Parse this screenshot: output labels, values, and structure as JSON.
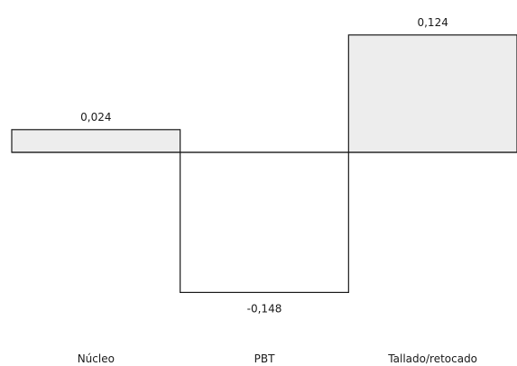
{
  "chart_data": {
    "type": "bar",
    "categories": [
      "Núcleo",
      "PBT",
      "Tallado/retocado"
    ],
    "values": [
      0.024,
      -0.148,
      0.124
    ],
    "data_labels": [
      "0,024",
      "-0,148",
      "0,124"
    ],
    "title": "",
    "xlabel": "",
    "ylabel": "",
    "ylim": [
      -0.148,
      0.124
    ],
    "grid": false,
    "legend": "none",
    "colors": {
      "bar_fill": "#ededed",
      "bar_stroke": "#1a1a1a"
    }
  }
}
